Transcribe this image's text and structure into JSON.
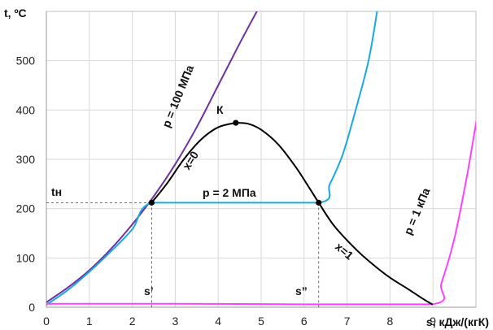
{
  "chart_data": {
    "type": "line",
    "title": "",
    "xlabel": "s, кДж/(кгК)",
    "ylabel": "t, ºC",
    "xlim": [
      0,
      10
    ],
    "ylim": [
      0,
      600
    ],
    "xticks": [
      0,
      1,
      2,
      3,
      4,
      5,
      6,
      7,
      8,
      9
    ],
    "yticks": [
      0,
      100,
      200,
      300,
      400,
      500
    ],
    "grid": true,
    "series": [
      {
        "name": "p = 100 МПа",
        "color": "#7030a0",
        "points": [
          [
            0,
            10
          ],
          [
            0.5,
            40
          ],
          [
            1.0,
            75
          ],
          [
            1.5,
            118
          ],
          [
            2.0,
            168
          ],
          [
            2.5,
            225
          ],
          [
            3.0,
            290
          ],
          [
            3.5,
            365
          ],
          [
            4.0,
            450
          ],
          [
            4.5,
            535
          ],
          [
            4.9,
            600
          ]
        ]
      },
      {
        "name": "p = 2 МПа",
        "color": "#19a9de",
        "points": [
          [
            0,
            5
          ],
          [
            0.5,
            35
          ],
          [
            1.0,
            72
          ],
          [
            1.5,
            113
          ],
          [
            2.0,
            158
          ],
          [
            2.45,
            212
          ],
          [
            4.0,
            212
          ],
          [
            6.34,
            212
          ],
          [
            6.6,
            250
          ],
          [
            6.9,
            310
          ],
          [
            7.2,
            400
          ],
          [
            7.5,
            500
          ],
          [
            7.7,
            600
          ]
        ]
      },
      {
        "name": "p = 1 кПа",
        "color": "#ff40ff",
        "points": [
          [
            0,
            7
          ],
          [
            3,
            7
          ],
          [
            6,
            6
          ],
          [
            8.98,
            6
          ],
          [
            9.2,
            50
          ],
          [
            9.5,
            140
          ],
          [
            9.8,
            270
          ],
          [
            10.1,
            420
          ],
          [
            10.4,
            530
          ]
        ]
      },
      {
        "name": "x=0",
        "color": "#000000",
        "points": [
          [
            2.45,
            212
          ],
          [
            2.8,
            250
          ],
          [
            3.2,
            300
          ],
          [
            3.6,
            340
          ],
          [
            4.0,
            365
          ],
          [
            4.41,
            374
          ]
        ]
      },
      {
        "name": "x=1",
        "color": "#000000",
        "points": [
          [
            4.41,
            374
          ],
          [
            4.7,
            372
          ],
          [
            5.0,
            360
          ],
          [
            5.4,
            330
          ],
          [
            5.8,
            285
          ],
          [
            6.1,
            245
          ],
          [
            6.34,
            212
          ],
          [
            6.7,
            165
          ],
          [
            7.2,
            118
          ],
          [
            7.6,
            87
          ],
          [
            8.0,
            60
          ],
          [
            8.4,
            38
          ],
          [
            8.75,
            18
          ],
          [
            8.98,
            6
          ]
        ]
      }
    ],
    "critical_point": {
      "label": "К",
      "x": 4.41,
      "y": 374
    },
    "saturation_points": [
      {
        "x": 2.45,
        "y": 212
      },
      {
        "x": 6.34,
        "y": 212
      }
    ],
    "annotations": {
      "t_sat": "tн",
      "s_prime": "s’",
      "s_double_prime": "s”"
    }
  }
}
